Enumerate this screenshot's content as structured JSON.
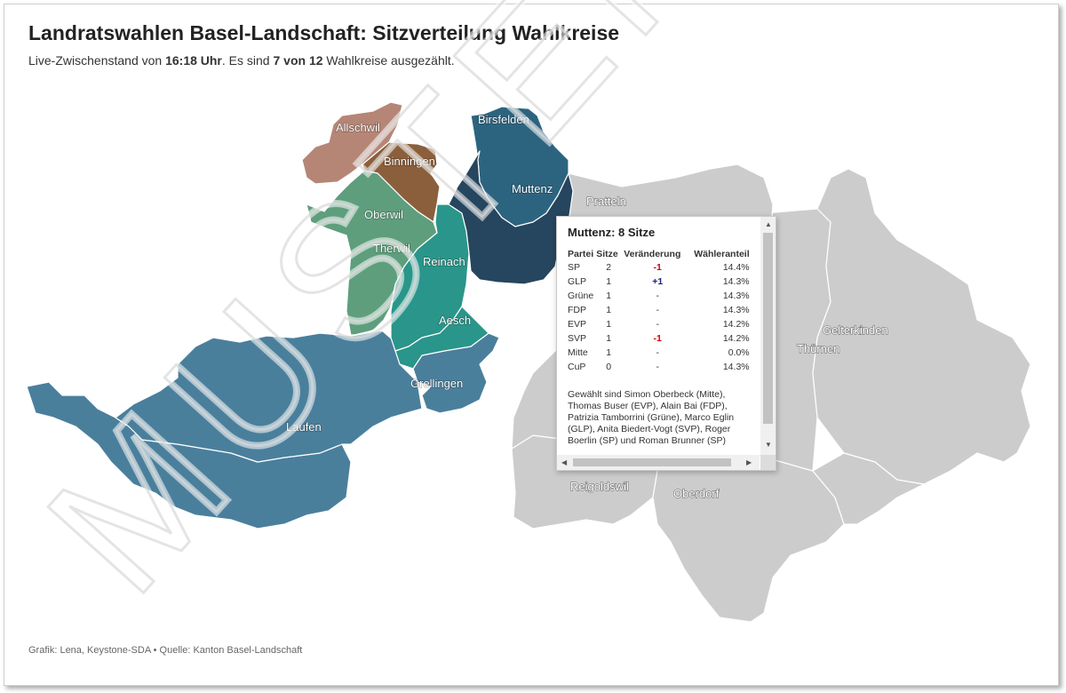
{
  "header": {
    "title": "Landratswahlen Basel-Landschaft: Sitzverteilung Wahlkreise",
    "subtitle_pre": "Live-Zwischenstand von ",
    "subtitle_time": "16:18 Uhr",
    "subtitle_mid": ". Es sind ",
    "subtitle_count": "7 von 12",
    "subtitle_post": " Wahlkreise ausgezählt."
  },
  "colors": {
    "allschwil": "#b58676",
    "binningen": "#8b5f3c",
    "oberwil": "#5e9e7d",
    "reinach": "#2a958a",
    "birsfelden": "#2c6480",
    "muttenz": "#26455e",
    "laufen": "#4a7f9c",
    "not_counted": "#cccccc"
  },
  "districts": {
    "allschwil": "Allschwil",
    "binningen": "Binningen",
    "oberwil": "Oberwil",
    "therwil": "Therwil",
    "reinach": "Reinach",
    "aesch": "Aesch",
    "grellingen": "Grellingen",
    "laufen": "Laufen",
    "birsfelden": "Birsfelden",
    "muttenz": "Muttenz",
    "pratteln": "Pratteln",
    "reigoldswil": "Reigoldswil",
    "oberdorf": "Oberdorf",
    "gelterkinden": "Gelterkinden",
    "thuernen": "Thürnen"
  },
  "watermark": "MUSTER",
  "tooltip": {
    "title": "Muttenz: 8 Sitze",
    "headers": [
      "Partei",
      "Sitze",
      "Veränderung",
      "Wähleranteil"
    ],
    "rows": [
      {
        "party": "SP",
        "seats": "2",
        "change": "-1",
        "share": "14.4%"
      },
      {
        "party": "GLP",
        "seats": "1",
        "change": "+1",
        "share": "14.3%"
      },
      {
        "party": "Grüne",
        "seats": "1",
        "change": "-",
        "share": "14.3%"
      },
      {
        "party": "FDP",
        "seats": "1",
        "change": "-",
        "share": "14.3%"
      },
      {
        "party": "EVP",
        "seats": "1",
        "change": "-",
        "share": "14.2%"
      },
      {
        "party": "SVP",
        "seats": "1",
        "change": "-1",
        "share": "14.2%"
      },
      {
        "party": "Mitte",
        "seats": "1",
        "change": "-",
        "share": "0.0%"
      },
      {
        "party": "CuP",
        "seats": "0",
        "change": "-",
        "share": "14.3%"
      }
    ],
    "elected": "Gewählt sind Simon Oberbeck (Mitte), Thomas Buser (EVP), Alain Bai (FDP), Patrizia Tamborrini (Grüne), Marco Eglin (GLP), Anita Biedert-Vogt (SVP), Roger Boerlin (SP) und Roman Brunner (SP)"
  },
  "footer": "Grafik: Lena, Keystone-SDA • Quelle: Kanton Basel-Landschaft"
}
